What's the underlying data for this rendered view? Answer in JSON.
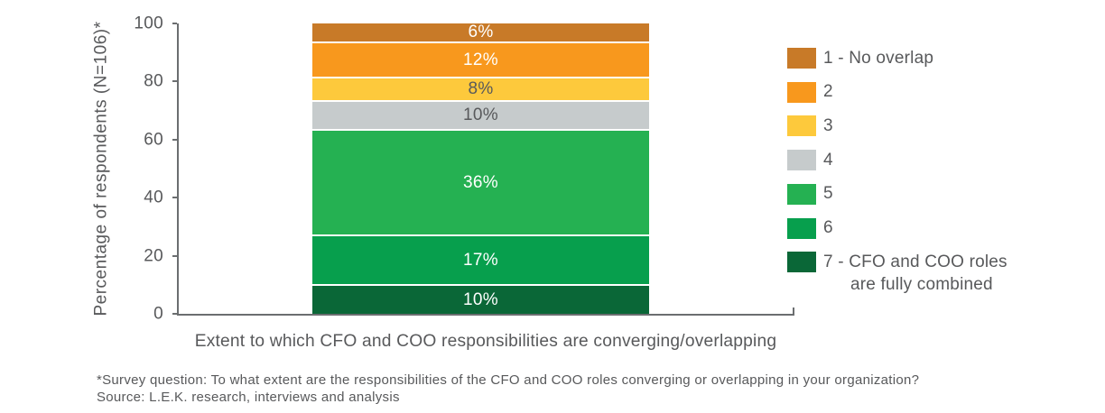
{
  "chart_data": {
    "type": "bar",
    "stacked": true,
    "title": "",
    "xlabel": "Extent to which CFO and COO responsibilities are converging/overlapping",
    "ylabel": "Percentage of respondents (N=106)*",
    "ylim": [
      0,
      100
    ],
    "yticks": [
      0,
      20,
      40,
      60,
      80,
      100
    ],
    "grid": false,
    "legend_position": "right",
    "categories": [
      "Extent to which CFO and COO responsibilities are converging/overlapping"
    ],
    "series": [
      {
        "name": "1 - No overlap",
        "value": 6,
        "data_label": "6%",
        "color": "#C87A28",
        "label_color": "#FFFFFF"
      },
      {
        "name": "2",
        "value": 12,
        "data_label": "12%",
        "color": "#F8981D",
        "label_color": "#FFFFFF"
      },
      {
        "name": "3",
        "value": 8,
        "data_label": "8%",
        "color": "#FDC93C",
        "label_color": "#58595B"
      },
      {
        "name": "4",
        "value": 10,
        "data_label": "10%",
        "color": "#C6CBCC",
        "label_color": "#58595B"
      },
      {
        "name": "5",
        "value": 36,
        "data_label": "36%",
        "color": "#25B152",
        "label_color": "#FFFFFF"
      },
      {
        "name": "6",
        "value": 17,
        "data_label": "17%",
        "color": "#079F4D",
        "label_color": "#FFFFFF"
      },
      {
        "name": "7 - CFO and COO roles are fully combined",
        "value": 10,
        "data_label": "10%",
        "color": "#0A6737",
        "label_color": "#FFFFFF"
      }
    ]
  },
  "legend": {
    "items": [
      {
        "label": "1 - No overlap",
        "label_line2": "",
        "color": "#C87A28"
      },
      {
        "label": "2",
        "label_line2": "",
        "color": "#F8981D"
      },
      {
        "label": "3",
        "label_line2": "",
        "color": "#FDC93C"
      },
      {
        "label": "4",
        "label_line2": "",
        "color": "#C6CBCC"
      },
      {
        "label": "5",
        "label_line2": "",
        "color": "#25B152"
      },
      {
        "label": "6",
        "label_line2": "",
        "color": "#079F4D"
      },
      {
        "label": "7 - CFO and COO roles",
        "label_line2": "are fully combined",
        "color": "#0A6737"
      }
    ]
  },
  "footnote": {
    "line1": "*Survey question: To what extent are the responsibilities of the CFO and COO roles converging or overlapping in your organization?",
    "line2": "Source: L.E.K. research, interviews and analysis"
  }
}
